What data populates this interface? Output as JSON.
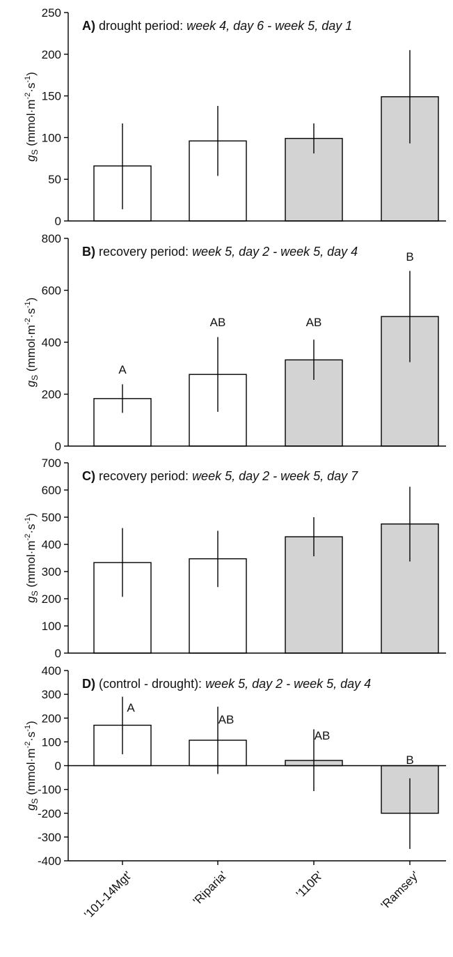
{
  "chart_data": [
    {
      "type": "bar",
      "label_letter": "A)",
      "title_plain": "drought period:",
      "title_italic": "week 4, day 6 - week 5, day 1",
      "ylabel_symbol": "g",
      "ylabel_sub": "S",
      "ylabel_unit_pre": "(mmol·m",
      "ylabel_exp1": "-2",
      "ylabel_mid": "·s",
      "ylabel_exp2": "-1",
      "ylabel_post": ")",
      "ylim": [
        0,
        250
      ],
      "yticks": [
        0,
        50,
        100,
        150,
        200,
        250
      ],
      "categories": [
        "'101-14Mgt'",
        "'Riparia'",
        "'110R'",
        "'Ramsey'"
      ],
      "values": [
        66,
        96,
        99,
        149
      ],
      "error_low": [
        14,
        54,
        81,
        93
      ],
      "error_high": [
        117,
        138,
        117,
        205
      ],
      "fills": [
        "#ffffff",
        "#ffffff",
        "#d3d3d3",
        "#d3d3d3"
      ],
      "significance": []
    },
    {
      "type": "bar",
      "label_letter": "B)",
      "title_plain": "recovery period:",
      "title_italic": "week 5, day 2 - week 5, day 4",
      "ylabel_symbol": "g",
      "ylabel_sub": "S",
      "ylabel_unit_pre": "(mmol·m",
      "ylabel_exp1": "-2",
      "ylabel_mid": "·s",
      "ylabel_exp2": "-1",
      "ylabel_post": ")",
      "ylim": [
        0,
        800
      ],
      "yticks": [
        0,
        200,
        400,
        600,
        800
      ],
      "categories": [
        "'101-14Mgt'",
        "'Riparia'",
        "'110R'",
        "'Ramsey'"
      ],
      "values": [
        183,
        276,
        332,
        499
      ],
      "error_low": [
        128,
        132,
        255,
        323
      ],
      "error_high": [
        238,
        420,
        410,
        675
      ],
      "fills": [
        "#ffffff",
        "#ffffff",
        "#d3d3d3",
        "#d3d3d3"
      ],
      "significance": [
        {
          "text": "A",
          "y": 295
        },
        {
          "text": "AB",
          "y": 478
        },
        {
          "text": "AB",
          "y": 478
        },
        {
          "text": "B",
          "y": 730
        }
      ]
    },
    {
      "type": "bar",
      "label_letter": "C)",
      "title_plain": "recovery period:",
      "title_italic": "week 5, day 2 - week 5, day 7",
      "ylabel_symbol": "g",
      "ylabel_sub": "S",
      "ylabel_unit_pre": "(mmol·m",
      "ylabel_exp1": "-2",
      "ylabel_mid": "·s",
      "ylabel_exp2": "-1",
      "ylabel_post": ")",
      "ylim": [
        0,
        700
      ],
      "yticks": [
        0,
        100,
        200,
        300,
        400,
        500,
        600,
        700
      ],
      "categories": [
        "'101-14Mgt'",
        "'Riparia'",
        "'110R'",
        "'Ramsey'"
      ],
      "values": [
        333,
        347,
        428,
        475
      ],
      "error_low": [
        207,
        243,
        356,
        337
      ],
      "error_high": [
        460,
        450,
        500,
        612
      ],
      "fills": [
        "#ffffff",
        "#ffffff",
        "#d3d3d3",
        "#d3d3d3"
      ],
      "significance": []
    },
    {
      "type": "bar",
      "label_letter": "D)",
      "title_plain": "(control - drought):",
      "title_italic": "week 5, day 2 - week 5, day 4",
      "ylabel_symbol": "g",
      "ylabel_sub": "S",
      "ylabel_unit_pre": "(mmol·m",
      "ylabel_exp1": "-2",
      "ylabel_mid": "·s",
      "ylabel_exp2": "-1",
      "ylabel_post": ")",
      "ylim": [
        -400,
        400
      ],
      "yticks": [
        -400,
        -300,
        -200,
        -100,
        0,
        100,
        200,
        300,
        400
      ],
      "categories": [
        "'101-14Mgt'",
        "'Riparia'",
        "'110R'",
        "'Ramsey'"
      ],
      "values": [
        170,
        107,
        22,
        -200
      ],
      "error_low": [
        48,
        -35,
        -107,
        -350
      ],
      "error_high": [
        290,
        248,
        153,
        -53
      ],
      "fills": [
        "#ffffff",
        "#ffffff",
        "#d3d3d3",
        "#d3d3d3"
      ],
      "significance": [
        {
          "text": "A",
          "y": 245
        },
        {
          "text": "AB",
          "y": 195
        },
        {
          "text": "AB",
          "y": 128
        },
        {
          "text": "B",
          "y": 25
        }
      ]
    }
  ]
}
